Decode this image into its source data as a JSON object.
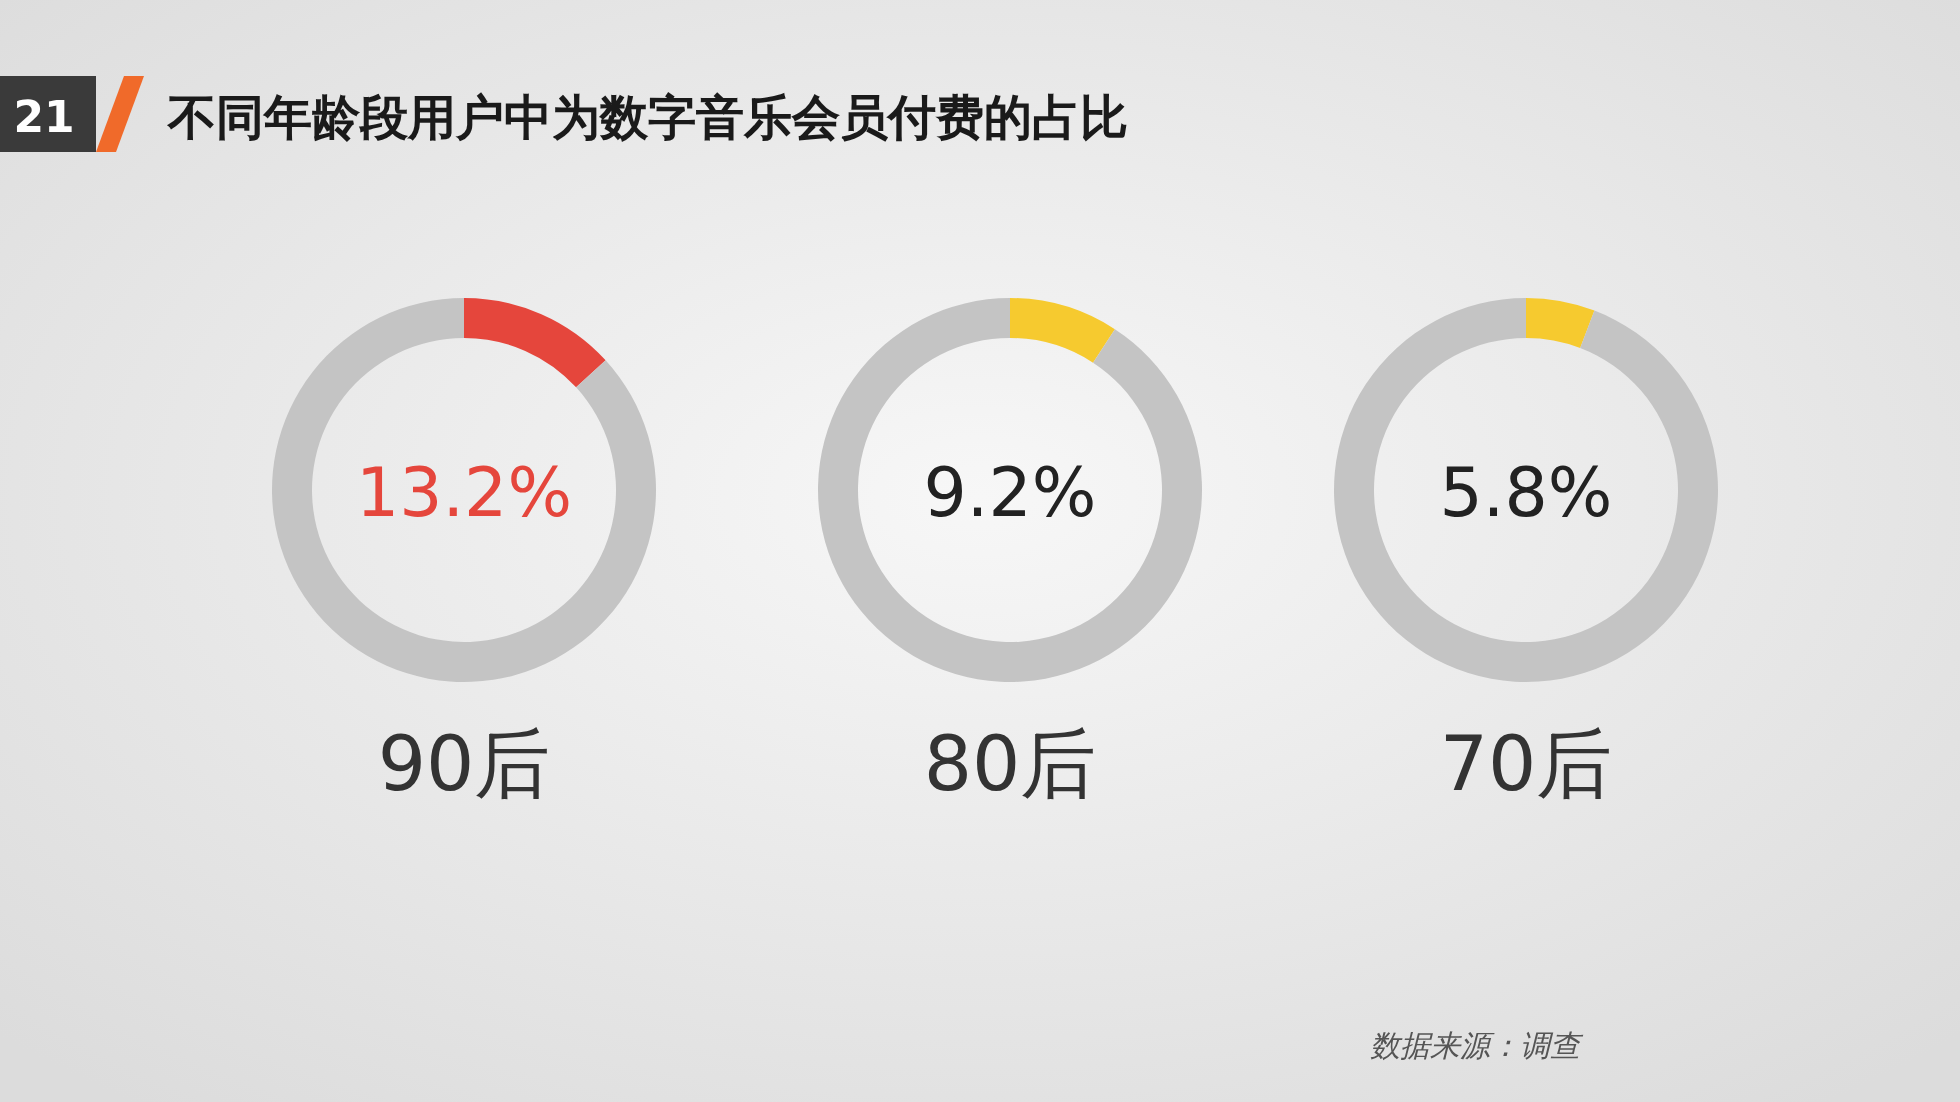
{
  "chart_data": [
    {
      "type": "other",
      "title": "不同年龄段用户中为数字音乐会员付费的占比",
      "annotations": [
        "21",
        "数据来源：调查"
      ]
    },
    {
      "type": "donut",
      "title": "90后",
      "categories": [
        null,
        null
      ],
      "values": [
        13.2,
        86.8
      ],
      "colors": [
        "#e5463c",
        "#c4c4c4"
      ],
      "annotations": [
        "13.2%"
      ]
    },
    {
      "type": "donut",
      "title": "80后",
      "categories": [
        null,
        null
      ],
      "values": [
        9.2,
        90.8
      ],
      "colors": [
        "#f6ca2f",
        "#c4c4c4"
      ],
      "annotations": [
        "9.2%"
      ]
    },
    {
      "type": "donut",
      "title": "70后",
      "categories": [
        null,
        null
      ],
      "values": [
        5.8,
        94.2
      ],
      "colors": [
        "#f6ca2f",
        "#c4c4c4"
      ],
      "annotations": [
        "5.8%"
      ]
    }
  ]
}
